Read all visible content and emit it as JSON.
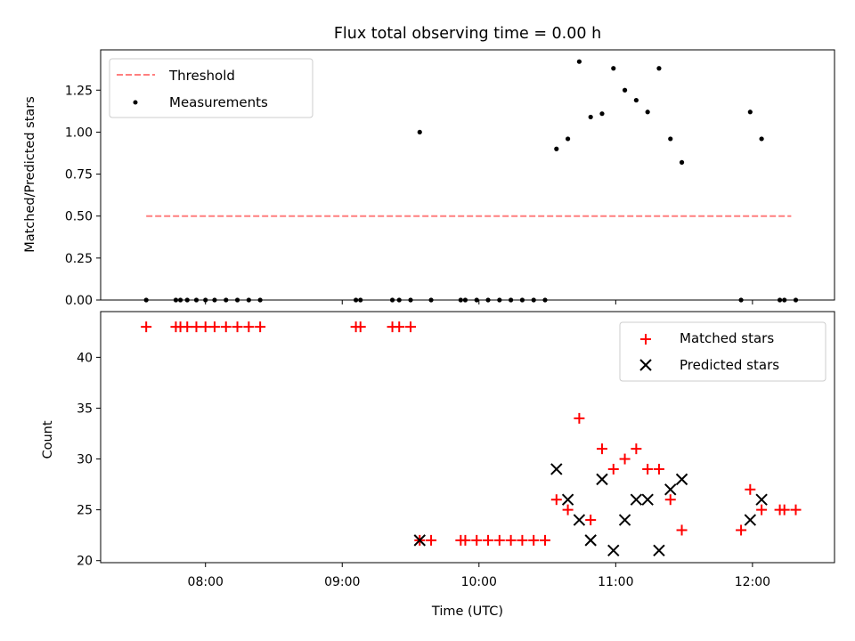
{
  "chart_data": [
    {
      "type": "scatter",
      "title": "Flux total observing time = 0.00 h",
      "xlabel": "",
      "ylabel": "Matched/Predicted stars",
      "ylim": [
        0.0,
        1.49
      ],
      "yticks": [
        "0.00",
        "0.25",
        "0.50",
        "0.75",
        "1.00",
        "1.25"
      ],
      "legend_position": "top-left",
      "threshold": {
        "name": "Threshold",
        "value": 0.5,
        "x_from": "07:34",
        "x_to": "12:17",
        "color": "#ff7f7f",
        "style": "dashed"
      },
      "series": [
        {
          "name": "Measurements",
          "color": "#000000",
          "marker": "dot",
          "points": [
            [
              "07:34",
              0.0
            ],
            [
              "07:47",
              0.0
            ],
            [
              "07:49",
              0.0
            ],
            [
              "07:52",
              0.0
            ],
            [
              "07:56",
              0.0
            ],
            [
              "08:00",
              0.0
            ],
            [
              "08:04",
              0.0
            ],
            [
              "08:09",
              0.0
            ],
            [
              "08:14",
              0.0
            ],
            [
              "08:19",
              0.0
            ],
            [
              "08:24",
              0.0
            ],
            [
              "09:06",
              0.0
            ],
            [
              "09:08",
              0.0
            ],
            [
              "09:22",
              0.0
            ],
            [
              "09:25",
              0.0
            ],
            [
              "09:30",
              0.0
            ],
            [
              "09:34",
              1.0
            ],
            [
              "09:39",
              0.0
            ],
            [
              "09:52",
              0.0
            ],
            [
              "09:54",
              0.0
            ],
            [
              "09:59",
              0.0
            ],
            [
              "10:04",
              0.0
            ],
            [
              "10:09",
              0.0
            ],
            [
              "10:14",
              0.0
            ],
            [
              "10:19",
              0.0
            ],
            [
              "10:24",
              0.0
            ],
            [
              "10:29",
              0.0
            ],
            [
              "10:34",
              0.9
            ],
            [
              "10:39",
              0.96
            ],
            [
              "10:44",
              1.42
            ],
            [
              "10:49",
              1.09
            ],
            [
              "10:54",
              1.11
            ],
            [
              "10:59",
              1.38
            ],
            [
              "11:04",
              1.25
            ],
            [
              "11:09",
              1.19
            ],
            [
              "11:14",
              1.12
            ],
            [
              "11:19",
              1.38
            ],
            [
              "11:24",
              0.96
            ],
            [
              "11:29",
              0.82
            ],
            [
              "11:55",
              0.0
            ],
            [
              "11:59",
              1.12
            ],
            [
              "12:04",
              0.96
            ],
            [
              "12:12",
              0.0
            ],
            [
              "12:14",
              0.0
            ],
            [
              "12:19",
              0.0
            ]
          ]
        }
      ]
    },
    {
      "type": "scatter",
      "title": "",
      "xlabel": "Time (UTC)",
      "ylabel": "Count",
      "ylim": [
        19.8,
        44.5
      ],
      "yticks": [
        "20",
        "25",
        "30",
        "35",
        "40"
      ],
      "xticks": [
        "08:00",
        "09:00",
        "10:00",
        "11:00",
        "12:00"
      ],
      "legend_position": "top-right",
      "series": [
        {
          "name": "Matched stars",
          "color": "#ff0000",
          "marker": "plus",
          "points": [
            [
              "07:34",
              43
            ],
            [
              "07:47",
              43
            ],
            [
              "07:49",
              43
            ],
            [
              "07:52",
              43
            ],
            [
              "07:56",
              43
            ],
            [
              "08:00",
              43
            ],
            [
              "08:04",
              43
            ],
            [
              "08:09",
              43
            ],
            [
              "08:14",
              43
            ],
            [
              "08:19",
              43
            ],
            [
              "08:24",
              43
            ],
            [
              "09:06",
              43
            ],
            [
              "09:08",
              43
            ],
            [
              "09:22",
              43
            ],
            [
              "09:25",
              43
            ],
            [
              "09:30",
              43
            ],
            [
              "09:34",
              22
            ],
            [
              "09:39",
              22
            ],
            [
              "09:52",
              22
            ],
            [
              "09:54",
              22
            ],
            [
              "09:59",
              22
            ],
            [
              "10:04",
              22
            ],
            [
              "10:09",
              22
            ],
            [
              "10:14",
              22
            ],
            [
              "10:19",
              22
            ],
            [
              "10:24",
              22
            ],
            [
              "10:29",
              22
            ],
            [
              "10:34",
              26
            ],
            [
              "10:39",
              25
            ],
            [
              "10:44",
              34
            ],
            [
              "10:49",
              24
            ],
            [
              "10:54",
              31
            ],
            [
              "10:59",
              29
            ],
            [
              "11:04",
              30
            ],
            [
              "11:09",
              31
            ],
            [
              "11:14",
              29
            ],
            [
              "11:19",
              29
            ],
            [
              "11:24",
              26
            ],
            [
              "11:29",
              23
            ],
            [
              "11:55",
              23
            ],
            [
              "11:59",
              27
            ],
            [
              "12:04",
              25
            ],
            [
              "12:12",
              25
            ],
            [
              "12:14",
              25
            ],
            [
              "12:19",
              25
            ]
          ]
        },
        {
          "name": "Predicted stars",
          "color": "#000000",
          "marker": "x",
          "points": [
            [
              "09:34",
              22
            ],
            [
              "10:34",
              29
            ],
            [
              "10:39",
              26
            ],
            [
              "10:44",
              24
            ],
            [
              "10:49",
              22
            ],
            [
              "10:54",
              28
            ],
            [
              "10:59",
              21
            ],
            [
              "11:04",
              24
            ],
            [
              "11:09",
              26
            ],
            [
              "11:14",
              26
            ],
            [
              "11:19",
              21
            ],
            [
              "11:24",
              27
            ],
            [
              "11:29",
              28
            ],
            [
              "11:59",
              24
            ],
            [
              "12:04",
              26
            ]
          ]
        }
      ]
    }
  ]
}
